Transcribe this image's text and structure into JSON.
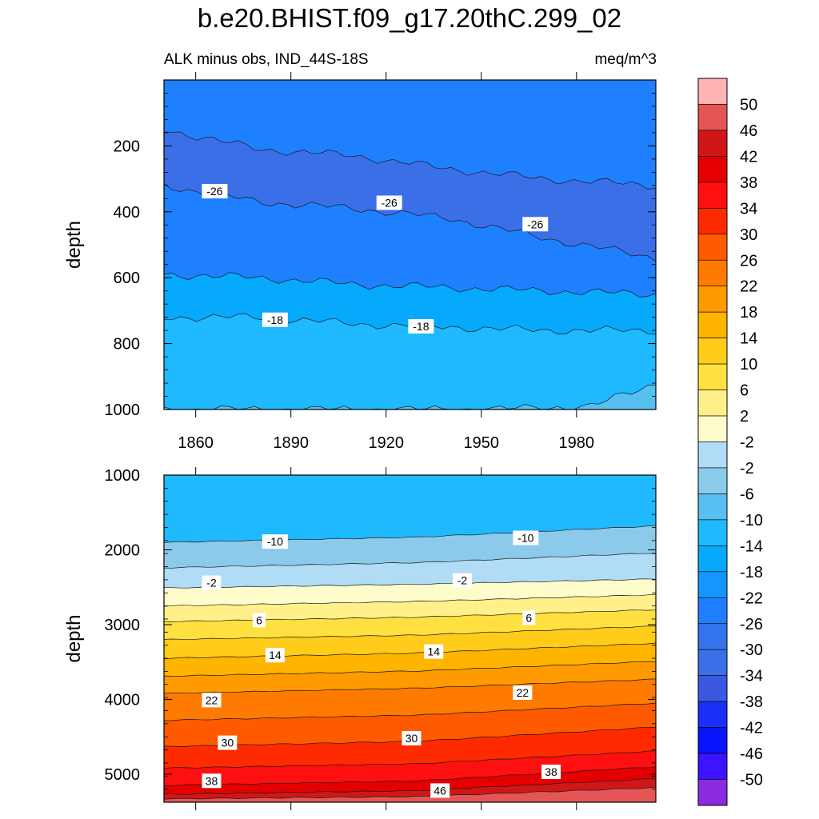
{
  "title": "b.e20.BHIST.f09_g17.20thC.299_02",
  "subtitle_left": "ALK minus obs, IND_44S-18S",
  "subtitle_right": "meq/m^3",
  "chart_data": [
    {
      "type": "contour",
      "panel": "upper",
      "xlabel": "",
      "ylabel": "depth",
      "xlim": [
        1850,
        2005
      ],
      "ylim": [
        1000,
        0
      ],
      "x_ticks": [
        "1860",
        "1890",
        "1920",
        "1950",
        "1980"
      ],
      "y_ticks": [
        "200",
        "400",
        "600",
        "800",
        "1000"
      ],
      "contour_boundaries": [
        {
          "level": -30,
          "x": [
            1850,
            1880,
            1910,
            1940,
            1970,
            2005
          ],
          "y": [
            150,
            210,
            230,
            270,
            300,
            320
          ]
        },
        {
          "level": -26,
          "x": [
            1850,
            1880,
            1910,
            1940,
            1970,
            2005
          ],
          "y": [
            320,
            370,
            390,
            420,
            480,
            540
          ]
        },
        {
          "level": -22,
          "x": [
            1850,
            1880,
            1910,
            1940,
            1970,
            2005
          ],
          "y": [
            590,
            600,
            620,
            630,
            640,
            650
          ]
        },
        {
          "level": -18,
          "x": [
            1850,
            1880,
            1910,
            1940,
            1970,
            2005
          ],
          "y": [
            720,
            720,
            740,
            750,
            760,
            760
          ]
        },
        {
          "level": -14,
          "x": [
            1850,
            1900,
            1950,
            1985,
            2005
          ],
          "y": [
            1000,
            1000,
            1000,
            990,
            920
          ]
        }
      ],
      "contour_labels": [
        {
          "text": "-26",
          "x": 1866,
          "y": 340
        },
        {
          "text": "-26",
          "x": 1921,
          "y": 375
        },
        {
          "text": "-26",
          "x": 1967,
          "y": 440
        },
        {
          "text": "-18",
          "x": 1885,
          "y": 730
        },
        {
          "text": "-18",
          "x": 1931,
          "y": 750
        }
      ]
    },
    {
      "type": "contour",
      "panel": "lower",
      "xlabel": "",
      "ylabel": "depth",
      "xlim": [
        1850,
        2005
      ],
      "ylim": [
        5375,
        1000
      ],
      "y_ticks": [
        "1000",
        "2000",
        "3000",
        "4000",
        "5000"
      ],
      "contour_boundaries": [
        {
          "level": -10,
          "x": [
            1850,
            1930,
            2005
          ],
          "y": [
            1900,
            1830,
            1680
          ]
        },
        {
          "level": -6,
          "x": [
            1850,
            1930,
            2005
          ],
          "y": [
            2240,
            2170,
            2040
          ]
        },
        {
          "level": -2,
          "x": [
            1850,
            1930,
            2005
          ],
          "y": [
            2510,
            2460,
            2390
          ]
        },
        {
          "level": 2,
          "x": [
            1850,
            1930,
            2005
          ],
          "y": [
            2750,
            2690,
            2600
          ]
        },
        {
          "level": 6,
          "x": [
            1850,
            1930,
            2005
          ],
          "y": [
            2960,
            2900,
            2800
          ]
        },
        {
          "level": 10,
          "x": [
            1850,
            1930,
            2005
          ],
          "y": [
            3200,
            3140,
            3020
          ]
        },
        {
          "level": 14,
          "x": [
            1850,
            1930,
            2005
          ],
          "y": [
            3450,
            3380,
            3250
          ]
        },
        {
          "level": 18,
          "x": [
            1850,
            1930,
            2005
          ],
          "y": [
            3690,
            3620,
            3490
          ]
        },
        {
          "level": 22,
          "x": [
            1850,
            1930,
            2005
          ],
          "y": [
            3920,
            3850,
            3730
          ]
        },
        {
          "level": 26,
          "x": [
            1850,
            1930,
            2005
          ],
          "y": [
            4280,
            4210,
            4050
          ]
        },
        {
          "level": 30,
          "x": [
            1850,
            1930,
            2005
          ],
          "y": [
            4630,
            4560,
            4370
          ]
        },
        {
          "level": 34,
          "x": [
            1850,
            1930,
            2005
          ],
          "y": [
            4920,
            4860,
            4690
          ]
        },
        {
          "level": 38,
          "x": [
            1850,
            1930,
            2005
          ],
          "y": [
            5150,
            5090,
            4900
          ]
        },
        {
          "level": 42,
          "x": [
            1850,
            1930,
            2005
          ],
          "y": [
            5270,
            5220,
            5060
          ]
        },
        {
          "level": 46,
          "x": [
            1850,
            1930,
            2005
          ],
          "y": [
            5330,
            5300,
            5180
          ]
        }
      ],
      "contour_labels": [
        {
          "text": "-10",
          "x": 1885,
          "y": 1900
        },
        {
          "text": "-10",
          "x": 1964,
          "y": 1850
        },
        {
          "text": "-2",
          "x": 1865,
          "y": 2450
        },
        {
          "text": "-2",
          "x": 1944,
          "y": 2420
        },
        {
          "text": "6",
          "x": 1880,
          "y": 2950
        },
        {
          "text": "6",
          "x": 1965,
          "y": 2920
        },
        {
          "text": "14",
          "x": 1885,
          "y": 3420
        },
        {
          "text": "14",
          "x": 1935,
          "y": 3370
        },
        {
          "text": "22",
          "x": 1865,
          "y": 4020
        },
        {
          "text": "22",
          "x": 1963,
          "y": 3920
        },
        {
          "text": "30",
          "x": 1870,
          "y": 4590
        },
        {
          "text": "30",
          "x": 1928,
          "y": 4530
        },
        {
          "text": "38",
          "x": 1865,
          "y": 5100
        },
        {
          "text": "38",
          "x": 1972,
          "y": 4980
        },
        {
          "text": "46",
          "x": 1937,
          "y": 5230
        }
      ]
    }
  ],
  "colorbar": {
    "labels": [
      "50",
      "46",
      "42",
      "38",
      "34",
      "30",
      "26",
      "22",
      "18",
      "14",
      "10",
      "6",
      "2",
      "-2",
      "-2",
      "-6",
      "-10",
      "-14",
      "-18",
      "-22",
      "-26",
      "-30",
      "-34",
      "-38",
      "-42",
      "-46",
      "-50"
    ],
    "colors": [
      "#ffb3b3",
      "#e65555",
      "#d01717",
      "#e40000",
      "#ff1010",
      "#ff2a00",
      "#ff5a00",
      "#ff7a00",
      "#ff9a00",
      "#ffb400",
      "#ffcc1a",
      "#ffe040",
      "#fff08a",
      "#fffccc",
      "#b0dcf5",
      "#8ccaec",
      "#56c0f0",
      "#1eb9ff",
      "#06a9fc",
      "#1496ff",
      "#1e80ff",
      "#3373ec",
      "#3a6fe8",
      "#3a58e0",
      "#1a30f8",
      "#0a14ff",
      "#3c14ff",
      "#8a2be2"
    ]
  }
}
